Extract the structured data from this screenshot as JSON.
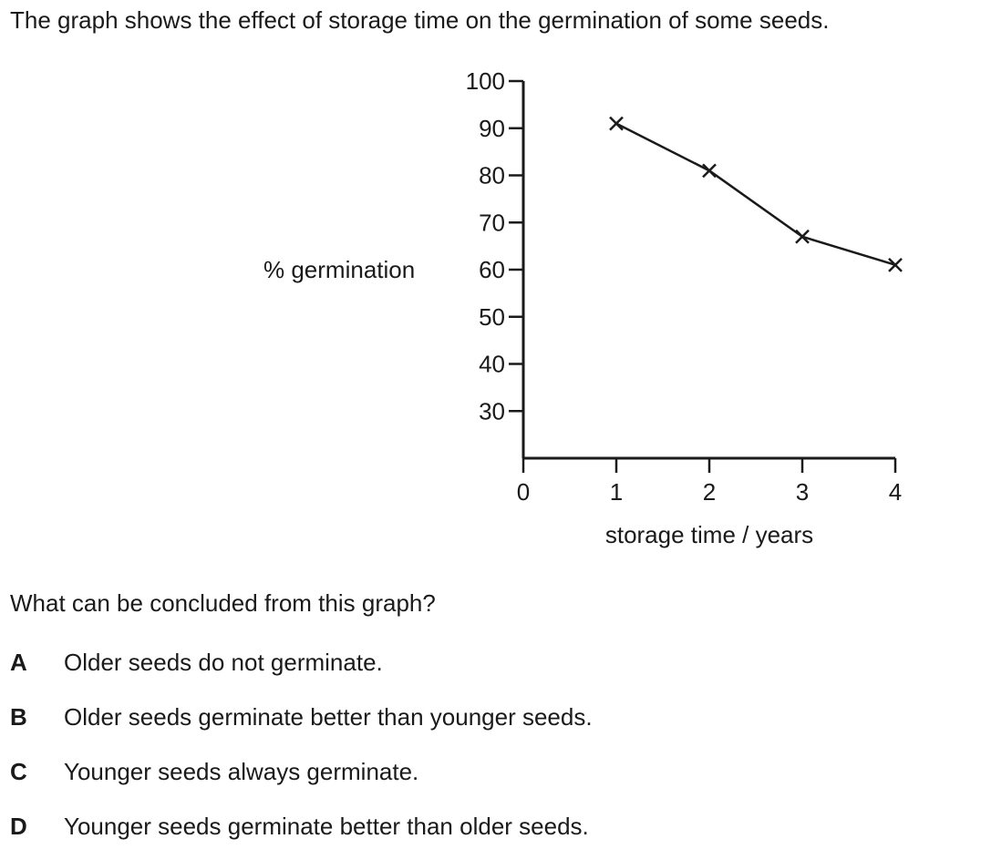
{
  "intro_text": "The graph shows the effect of storage time on the germination of some seeds.",
  "question": "What can be concluded from this graph?",
  "options": [
    {
      "letter": "A",
      "text": "Older seeds do not germinate."
    },
    {
      "letter": "B",
      "text": "Older seeds germinate better than younger seeds."
    },
    {
      "letter": "C",
      "text": "Younger seeds always germinate."
    },
    {
      "letter": "D",
      "text": "Younger seeds germinate better than older seeds."
    }
  ],
  "chart_data": {
    "type": "line",
    "title": "",
    "xlabel": "storage time / years",
    "ylabel": "% germination",
    "x_ticks": [
      0,
      1,
      2,
      3,
      4
    ],
    "y_ticks": [
      30,
      40,
      50,
      60,
      70,
      80,
      90,
      100
    ],
    "xlim": [
      0,
      4
    ],
    "ylim": [
      20,
      100
    ],
    "grid": false,
    "marker": "cross",
    "line_color": "#1a1a1a",
    "series": [
      {
        "x": [
          1,
          2,
          3,
          4
        ],
        "y": [
          91,
          81,
          67,
          61
        ]
      }
    ]
  }
}
